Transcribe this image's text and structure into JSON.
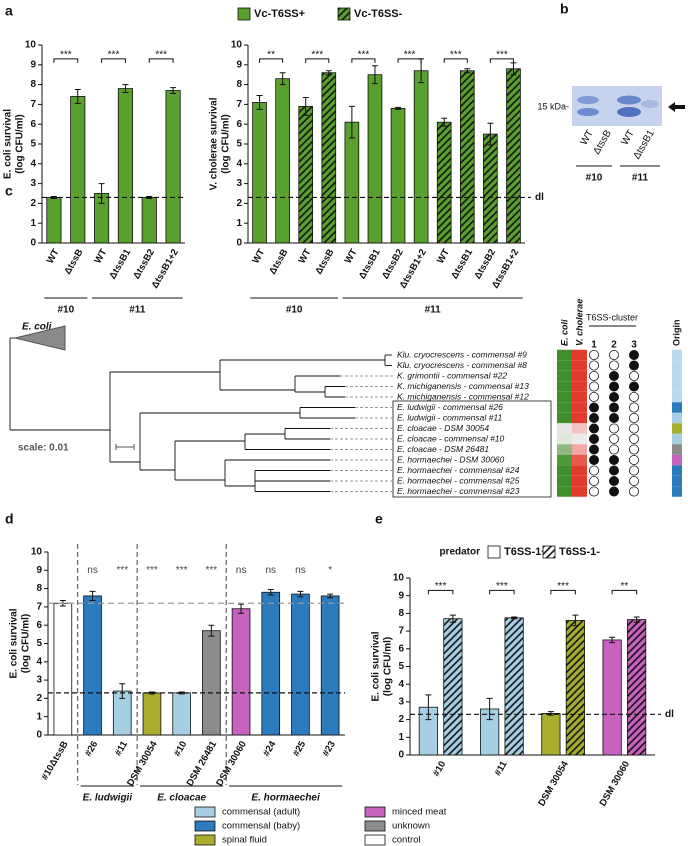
{
  "chart_data": [
    {
      "type": "bar",
      "panel": "a",
      "ylabel": [
        "E. coli survival",
        "(log CFU/ml)"
      ],
      "ylim": [
        0,
        10
      ],
      "yticks": [
        0,
        1,
        2,
        3,
        4,
        5,
        6,
        7,
        8,
        9,
        10
      ],
      "groups": [
        {
          "label": "#10",
          "categories": [
            "WT",
            "ΔtssB"
          ]
        },
        {
          "label": "#11",
          "categories": [
            "WT",
            "ΔtssB1",
            "ΔtssB2",
            "ΔtssB1+2"
          ]
        }
      ],
      "values": [
        2.3,
        7.4,
        2.5,
        7.8,
        2.3,
        7.7
      ],
      "errors": [
        0.05,
        0.35,
        0.5,
        0.2,
        0.05,
        0.15
      ],
      "color": "#5aa02c",
      "significance_pairs": [
        "***",
        "***",
        "***"
      ],
      "dl": 2.3
    },
    {
      "type": "bar",
      "ylabel": [
        "V. cholerae survival",
        "(log CFU/ml)"
      ],
      "ylim": [
        0,
        10
      ],
      "yticks": [
        0,
        1,
        2,
        3,
        4,
        5,
        6,
        7,
        8,
        9,
        10
      ],
      "groups": [
        {
          "label": "#10",
          "categories": [
            "WT",
            "ΔtssB",
            "WT",
            "ΔtssB"
          ]
        },
        {
          "label": "#11",
          "categories": [
            "WT",
            "ΔtssB1",
            "ΔtssB2",
            "ΔtssB1+2",
            "WT",
            "ΔtssB1",
            "ΔtssB2",
            "ΔtssB1+2"
          ]
        }
      ],
      "series": [
        {
          "name": "Vc-T6SS+",
          "color": "#5aa02c",
          "values": [
            7.1,
            8.3,
            null,
            null,
            6.1,
            8.5,
            6.8,
            8.7,
            null,
            null,
            null,
            null
          ],
          "errors": [
            0.35,
            0.3,
            null,
            null,
            0.8,
            0.45,
            0.05,
            0.6,
            null,
            null,
            null,
            null
          ]
        },
        {
          "name": "Vc-T6SS-",
          "color": "#5aa02c",
          "hatch": true,
          "values": [
            null,
            null,
            6.9,
            8.6,
            null,
            null,
            null,
            null,
            6.1,
            8.7,
            5.5,
            8.8
          ],
          "errors": [
            null,
            null,
            0.45,
            0.1,
            null,
            null,
            null,
            null,
            0.2,
            0.1,
            0.55,
            0.3
          ]
        }
      ],
      "significance_pairs": [
        "**",
        "***",
        "***",
        "***",
        "***",
        "***"
      ],
      "dl": 2.3,
      "dl_label": "dl"
    },
    {
      "type": "bar",
      "panel": "d",
      "ylabel": [
        "E. coli survival",
        "(log CFU/ml)"
      ],
      "ylim": [
        0,
        10
      ],
      "yticks": [
        0,
        1,
        2,
        3,
        4,
        5,
        6,
        7,
        8,
        9,
        10
      ],
      "groups": [
        {
          "label": null,
          "categories": [
            "#10ΔtssB"
          ]
        },
        {
          "label": "E. ludwigii",
          "categories": [
            "#26",
            "#11"
          ]
        },
        {
          "label": "E. cloacae",
          "categories": [
            "DSM 30054",
            "#10",
            "DSM 26481"
          ]
        },
        {
          "label": "E. hormaechei",
          "categories": [
            "DSM 30060",
            "#24",
            "#25",
            "#23"
          ]
        }
      ],
      "group_separators": true,
      "values": [
        7.2,
        7.6,
        2.4,
        2.3,
        2.3,
        5.7,
        6.9,
        7.8,
        7.7,
        7.6
      ],
      "errors": [
        0.15,
        0.25,
        0.4,
        0.05,
        0.05,
        0.3,
        0.25,
        0.15,
        0.15,
        0.1
      ],
      "colors": [
        "#ffffff",
        "#2c7bbf",
        "#a6cfe3",
        "#a8ad2d",
        "#a6cfe3",
        "#8c8c8c",
        "#c862bf",
        "#2c7bbf",
        "#2c7bbf",
        "#2c7bbf"
      ],
      "significance": [
        null,
        "ns",
        "***",
        "***",
        "***",
        "***",
        "ns",
        "ns",
        "ns",
        "*"
      ],
      "dl": 2.3,
      "control_line": 7.2
    },
    {
      "type": "bar",
      "panel": "e",
      "ylabel": [
        "E. coli survival",
        "(log CFU/ml)"
      ],
      "ylim": [
        0,
        10
      ],
      "yticks": [
        0,
        1,
        2,
        3,
        4,
        5,
        6,
        7,
        8,
        9,
        10
      ],
      "legend_title": "predator",
      "categories": [
        "#10",
        "#11",
        "DSM 30054",
        "DSM 30060"
      ],
      "series": [
        {
          "name": "T6SS-1+",
          "color": "#ffffff",
          "colors": [
            "#a6cfe3",
            "#a6cfe3",
            "#a8ad2d",
            "#c862bf"
          ],
          "values": [
            2.7,
            2.6,
            2.35,
            6.5
          ],
          "errors": [
            0.7,
            0.6,
            0.1,
            0.15
          ]
        },
        {
          "name": "T6SS-1-",
          "color": "#ffffff",
          "hatch": true,
          "colors": [
            "#a6cfe3",
            "#a6cfe3",
            "#a8ad2d",
            "#c862bf"
          ],
          "values": [
            7.7,
            7.75,
            7.6,
            7.65
          ],
          "errors": [
            0.2,
            0.05,
            0.3,
            0.15
          ]
        }
      ],
      "significance_pairs": [
        "***",
        "***",
        "***",
        "**"
      ],
      "dl": 2.3,
      "dl_label": "dl"
    }
  ],
  "blot": {
    "panel": "b",
    "marker": "15 kDa-",
    "lanes": [
      "WT",
      "ΔtssB",
      "WT",
      "ΔtssB1"
    ],
    "groups": [
      "#10",
      "#11"
    ]
  },
  "tree": {
    "panel": "c",
    "outgroup": "E. coli",
    "scale_label": "scale: 0.01",
    "columns": [
      "E. coli",
      "V. cholerae"
    ],
    "cluster_title": "T6SS-cluster",
    "clusters": [
      1,
      2,
      3
    ],
    "origin_title": "Origin",
    "leaves": [
      {
        "name": "Klu. cryocrescens - commensal #9",
        "colors": [
          "#3f8f2f",
          "#e23b2e"
        ],
        "t6ss": [
          0,
          0,
          1
        ],
        "origin": "#b9d9ec"
      },
      {
        "name": "Klu. cryocrescens - commensal #8",
        "colors": [
          "#3f8f2f",
          "#e23b2e"
        ],
        "t6ss": [
          0,
          0,
          1
        ],
        "origin": "#b9d9ec"
      },
      {
        "name": "K. grimontii - commensal #22",
        "colors": [
          "#3f8f2f",
          "#e23b2e"
        ],
        "t6ss": [
          0,
          1,
          0
        ],
        "origin": "#b9d9ec"
      },
      {
        "name": "K. michiganensis - commensal #13",
        "colors": [
          "#3f8f2f",
          "#e23b2e"
        ],
        "t6ss": [
          0,
          1,
          1
        ],
        "origin": "#b9d9ec"
      },
      {
        "name": "K. michiganensis - commensal #12",
        "colors": [
          "#3f8f2f",
          "#e23b2e"
        ],
        "t6ss": [
          0,
          1,
          0
        ],
        "origin": "#b9d9ec"
      },
      {
        "name": "E. ludwigii - commensal #26",
        "colors": [
          "#3f8f2f",
          "#e23b2e"
        ],
        "t6ss": [
          1,
          1,
          0
        ],
        "origin": "#2c7bbf"
      },
      {
        "name": "E. ludwigii - commensal #11",
        "colors": [
          "#3f8f2f",
          "#e23b2e"
        ],
        "t6ss": [
          1,
          1,
          0
        ],
        "origin": "#a6cfe3"
      },
      {
        "name": "E. cloacae - DSM 30054",
        "colors": [
          "#e6e6e6",
          "#f2c4c4"
        ],
        "t6ss": [
          1,
          0,
          0
        ],
        "origin": "#a8ad2d"
      },
      {
        "name": "E. cloacae - commensal #10",
        "colors": [
          "#dfe8da",
          "#ececec"
        ],
        "t6ss": [
          1,
          0,
          0
        ],
        "origin": "#a6cfe3"
      },
      {
        "name": "E. cloacae - DSM 26481",
        "colors": [
          "#8fb883",
          "#f0a8a8"
        ],
        "t6ss": [
          1,
          0,
          0
        ],
        "origin": "#8c8c8c"
      },
      {
        "name": "E. hormaechei - DSM 30060",
        "colors": [
          "#4c9a3a",
          "#e85a50"
        ],
        "t6ss": [
          1,
          1,
          0
        ],
        "origin": "#c862bf"
      },
      {
        "name": "E. hormaechei - commensal #24",
        "colors": [
          "#3f8f2f",
          "#e23b2e"
        ],
        "t6ss": [
          0,
          1,
          0
        ],
        "origin": "#2c7bbf"
      },
      {
        "name": "E. hormaechei - commensal #25",
        "colors": [
          "#3f8f2f",
          "#e23b2e"
        ],
        "t6ss": [
          0,
          1,
          0
        ],
        "origin": "#2c7bbf"
      },
      {
        "name": "E. hormaechei - commensal #23",
        "colors": [
          "#3f8f2f",
          "#e23b2e"
        ],
        "t6ss": [
          0,
          1,
          0
        ],
        "origin": "#2c7bbf"
      }
    ]
  },
  "origin_legend": [
    {
      "label": "commensal (adult)",
      "color": "#a6cfe3"
    },
    {
      "label": "commensal (baby)",
      "color": "#2c7bbf"
    },
    {
      "label": "spinal fluid",
      "color": "#a8ad2d"
    },
    {
      "label": "minced meat",
      "color": "#c862bf"
    },
    {
      "label": "unknown",
      "color": "#8c8c8c"
    },
    {
      "label": "control",
      "color": "#ffffff"
    }
  ]
}
